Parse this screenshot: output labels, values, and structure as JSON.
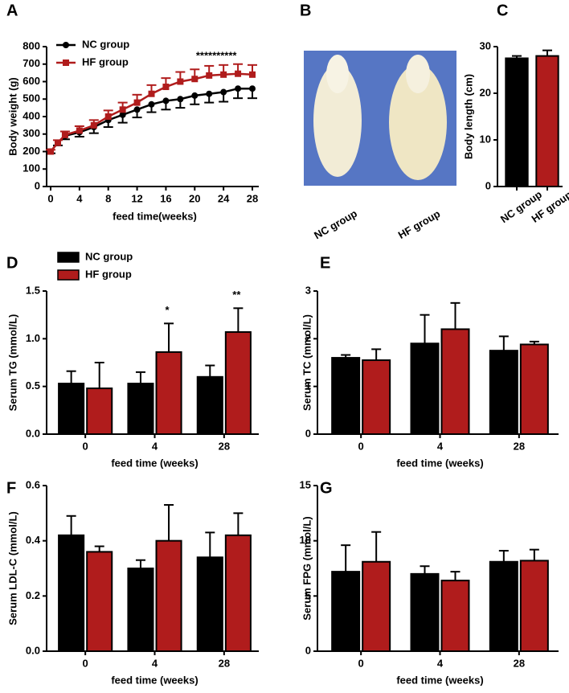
{
  "chart_data": [
    {
      "type": "line",
      "panel": "A",
      "x_label": "feed time(weeks)",
      "y_label": "Body weight (g)",
      "x": [
        0,
        1,
        2,
        4,
        6,
        8,
        10,
        12,
        14,
        16,
        18,
        20,
        22,
        24,
        26,
        28
      ],
      "xlim": [
        0,
        28
      ],
      "xticks": [
        0,
        4,
        8,
        12,
        16,
        20,
        24,
        28
      ],
      "ylim": [
        0,
        800
      ],
      "yticks": [
        0,
        100,
        200,
        300,
        400,
        500,
        600,
        700,
        800
      ],
      "annotation": "**********",
      "series": [
        {
          "name": "NC group",
          "color": "#000000",
          "marker": "circle",
          "error_side": "down",
          "values": [
            200,
            250,
            290,
            310,
            340,
            380,
            410,
            440,
            470,
            490,
            500,
            520,
            530,
            540,
            560,
            560
          ],
          "errors": [
            10,
            15,
            20,
            25,
            35,
            40,
            45,
            45,
            45,
            50,
            50,
            50,
            50,
            55,
            55,
            55
          ]
        },
        {
          "name": "HF group",
          "color": "#b01c1c",
          "marker": "square",
          "error_side": "up",
          "values": [
            200,
            250,
            295,
            320,
            350,
            400,
            440,
            480,
            530,
            570,
            600,
            615,
            635,
            640,
            645,
            640
          ],
          "errors": [
            10,
            15,
            20,
            25,
            30,
            35,
            40,
            45,
            50,
            50,
            55,
            55,
            55,
            55,
            55,
            55
          ]
        }
      ]
    },
    {
      "type": "bar",
      "panel": "C",
      "y_label": "Body length (cm)",
      "categories": [
        "NC group",
        "HF group"
      ],
      "ylim": [
        0,
        30
      ],
      "yticks": [
        0,
        10,
        20,
        30
      ],
      "series": [
        {
          "name": null,
          "colors": [
            "#000000",
            "#b01c1c"
          ],
          "values": [
            27.5,
            28
          ],
          "errors": [
            0.5,
            1.2
          ]
        }
      ]
    },
    {
      "type": "bar",
      "panel": "D",
      "x_label": "feed time (weeks)",
      "y_label": "Serum TG (mmol/L)",
      "legend": true,
      "categories": [
        "0",
        "4",
        "28"
      ],
      "ylim": [
        0,
        1.5
      ],
      "yticks": [
        {
          "value": 0,
          "label": "0.0"
        },
        0.5,
        {
          "value": 1,
          "label": "1.0"
        },
        1.5
      ],
      "significance": [
        null,
        "*",
        "**"
      ],
      "series": [
        {
          "name": "NC group",
          "color": "#000000",
          "values": [
            0.53,
            0.53,
            0.6
          ],
          "errors": [
            0.13,
            0.12,
            0.12
          ]
        },
        {
          "name": "HF group",
          "color": "#b01c1c",
          "values": [
            0.48,
            0.86,
            1.07
          ],
          "errors": [
            0.27,
            0.3,
            0.25
          ]
        }
      ]
    },
    {
      "type": "bar",
      "panel": "E",
      "x_label": "feed time (weeks)",
      "y_label": "Serum TC (mmol/L)",
      "categories": [
        "0",
        "4",
        "28"
      ],
      "ylim": [
        0,
        3
      ],
      "yticks": [
        0,
        1,
        2,
        3
      ],
      "series": [
        {
          "name": "NC group",
          "color": "#000000",
          "values": [
            1.6,
            1.9,
            1.75
          ],
          "errors": [
            0.06,
            0.6,
            0.3
          ]
        },
        {
          "name": "HF group",
          "color": "#b01c1c",
          "values": [
            1.55,
            2.2,
            1.88
          ],
          "errors": [
            0.23,
            0.55,
            0.06
          ]
        }
      ]
    },
    {
      "type": "bar",
      "panel": "F",
      "x_label": "feed time (weeks)",
      "y_label": "Serum LDL-C (mmol/L)",
      "categories": [
        "0",
        "4",
        "28"
      ],
      "ylim": [
        0,
        0.6
      ],
      "yticks": [
        {
          "value": 0,
          "label": "0.0"
        },
        0.2,
        0.4,
        0.6
      ],
      "series": [
        {
          "name": "NC group",
          "color": "#000000",
          "values": [
            0.42,
            0.3,
            0.34
          ],
          "errors": [
            0.07,
            0.03,
            0.09
          ]
        },
        {
          "name": "HF group",
          "color": "#b01c1c",
          "values": [
            0.36,
            0.4,
            0.42
          ],
          "errors": [
            0.02,
            0.13,
            0.08
          ]
        }
      ]
    },
    {
      "type": "bar",
      "panel": "G",
      "x_label": "feed time (weeks)",
      "y_label": "Serum FPG (mmol/L)",
      "categories": [
        "0",
        "4",
        "28"
      ],
      "ylim": [
        0,
        15
      ],
      "yticks": [
        0,
        5,
        10,
        15
      ],
      "series": [
        {
          "name": "NC group",
          "color": "#000000",
          "values": [
            7.2,
            7.0,
            8.1
          ],
          "errors": [
            2.4,
            0.7,
            1.0
          ]
        },
        {
          "name": "HF group",
          "color": "#b01c1c",
          "values": [
            8.1,
            6.4,
            8.2
          ],
          "errors": [
            2.7,
            0.8,
            1.0
          ]
        }
      ]
    }
  ],
  "photo": {
    "panel": "B",
    "labels": [
      "NC group",
      "HF group"
    ]
  }
}
